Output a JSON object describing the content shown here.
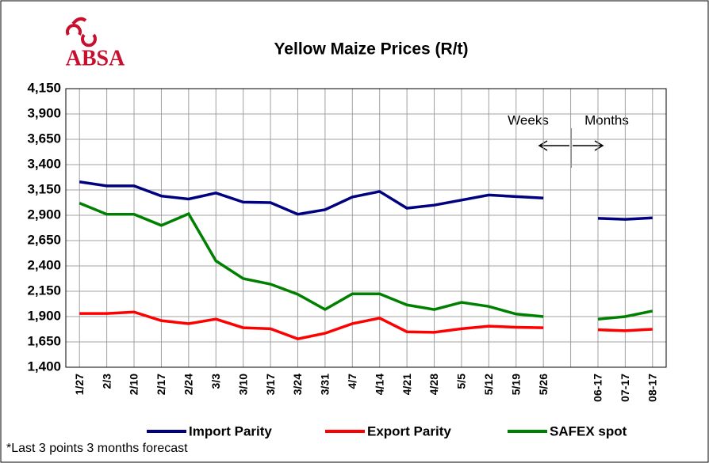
{
  "chart_data": {
    "type": "line",
    "title": "Yellow Maize Prices (R/t)",
    "logo": "ABSA",
    "annotations": [
      "Weeks",
      "Months"
    ],
    "footnote": "*Last 3 points 3 months forecast",
    "categories": [
      "1/27",
      "2/3",
      "2/10",
      "2/17",
      "2/24",
      "3/3",
      "3/10",
      "3/17",
      "3/24",
      "3/31",
      "4/7",
      "4/14",
      "4/21",
      "4/28",
      "5/5",
      "5/12",
      "5/19",
      "5/26",
      null,
      "06-17",
      "07-17",
      "08-17"
    ],
    "series": [
      {
        "name": "Import Parity",
        "color": "#000080",
        "values": [
          3230,
          3190,
          3190,
          3090,
          3060,
          3120,
          3030,
          3025,
          2910,
          2955,
          3080,
          3135,
          2970,
          3000,
          3050,
          3100,
          3085,
          3070,
          null,
          2870,
          2860,
          2875
        ]
      },
      {
        "name": "Export Parity",
        "color": "#ff0000",
        "values": [
          1930,
          1930,
          1945,
          1860,
          1830,
          1875,
          1790,
          1780,
          1680,
          1735,
          1830,
          1885,
          1750,
          1745,
          1780,
          1805,
          1795,
          1790,
          null,
          1770,
          1760,
          1775
        ]
      },
      {
        "name": "SAFEX spot",
        "color": "#008000",
        "values": [
          3020,
          2910,
          2910,
          2800,
          2915,
          2450,
          2275,
          2220,
          2120,
          1970,
          2125,
          2125,
          2015,
          1970,
          2040,
          2000,
          1925,
          1900,
          null,
          1875,
          1900,
          1955
        ]
      }
    ],
    "ylim": [
      1400,
      4150
    ],
    "yticks": [
      {
        "value": 1400,
        "label": "1,400"
      },
      {
        "value": 1650,
        "label": "1,650"
      },
      {
        "value": 1900,
        "label": "1,900"
      },
      {
        "value": 2150,
        "label": "2,150"
      },
      {
        "value": 2400,
        "label": "2,400"
      },
      {
        "value": 2650,
        "label": "2,650"
      },
      {
        "value": 2900,
        "label": "2,900"
      },
      {
        "value": 3150,
        "label": "3,150"
      },
      {
        "value": 3400,
        "label": "3,400"
      },
      {
        "value": 3650,
        "label": "3,650"
      },
      {
        "value": 3900,
        "label": "3,900"
      },
      {
        "value": 4150,
        "label": "4,150"
      }
    ],
    "grid": true,
    "legend": "bottom"
  }
}
